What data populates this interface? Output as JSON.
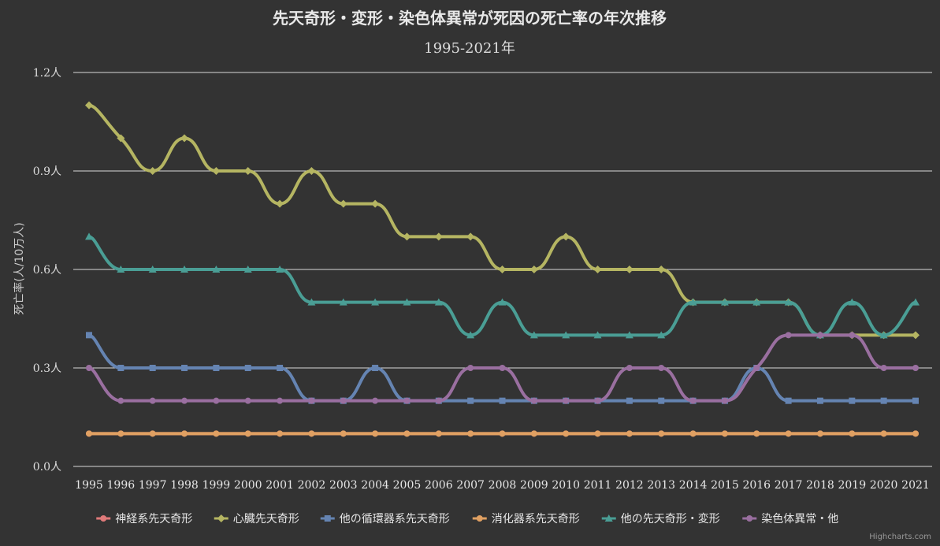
{
  "chart_data": {
    "type": "line",
    "title": "先天奇形・変形・染色体異常が死因の死亡率の年次推移",
    "subtitle": "1995-2021年",
    "ylabel": "死亡率(人/10万人)",
    "y_unit": "人",
    "ylim": [
      0,
      1.2
    ],
    "yticks": [
      0,
      0.3,
      0.6,
      0.9,
      1.2
    ],
    "ytick_labels": [
      "0.0人",
      "0.3人",
      "0.6人",
      "0.9人",
      "1.2人"
    ],
    "grid": true,
    "legend_position": "bottom-center",
    "categories": [
      "1995",
      "1996",
      "1997",
      "1998",
      "1999",
      "2000",
      "2001",
      "2002",
      "2003",
      "2004",
      "2005",
      "2006",
      "2007",
      "2008",
      "2009",
      "2010",
      "2011",
      "2012",
      "2013",
      "2014",
      "2015",
      "2016",
      "2017",
      "2018",
      "2019",
      "2020",
      "2021"
    ],
    "series": [
      {
        "name": "神経系先天奇形",
        "color": "#e07a7a",
        "marker": "circle",
        "values": [
          0.1,
          0.1,
          0.1,
          0.1,
          0.1,
          0.1,
          0.1,
          0.1,
          0.1,
          0.1,
          0.1,
          0.1,
          0.1,
          0.1,
          0.1,
          0.1,
          0.1,
          0.1,
          0.1,
          0.1,
          0.1,
          0.1,
          0.1,
          0.1,
          0.1,
          0.1,
          0.1
        ]
      },
      {
        "name": "心臓先天奇形",
        "color": "#b5b562",
        "marker": "diamond",
        "values": [
          1.1,
          1.0,
          0.9,
          1.0,
          0.9,
          0.9,
          0.8,
          0.9,
          0.8,
          0.8,
          0.7,
          0.7,
          0.7,
          0.6,
          0.6,
          0.7,
          0.6,
          0.6,
          0.6,
          0.5,
          0.5,
          0.5,
          0.5,
          0.4,
          0.4,
          0.4,
          0.4
        ]
      },
      {
        "name": "他の循環器系先天奇形",
        "color": "#6584b2",
        "marker": "square",
        "values": [
          0.4,
          0.3,
          0.3,
          0.3,
          0.3,
          0.3,
          0.3,
          0.2,
          0.2,
          0.3,
          0.2,
          0.2,
          0.2,
          0.2,
          0.2,
          0.2,
          0.2,
          0.2,
          0.2,
          0.2,
          0.2,
          0.3,
          0.2,
          0.2,
          0.2,
          0.2,
          0.2
        ]
      },
      {
        "name": "消化器系先天奇形",
        "color": "#e0a062",
        "marker": "circle",
        "values": [
          0.1,
          0.1,
          0.1,
          0.1,
          0.1,
          0.1,
          0.1,
          0.1,
          0.1,
          0.1,
          0.1,
          0.1,
          0.1,
          0.1,
          0.1,
          0.1,
          0.1,
          0.1,
          0.1,
          0.1,
          0.1,
          0.1,
          0.1,
          0.1,
          0.1,
          0.1,
          0.1
        ]
      },
      {
        "name": "他の先天奇形・変形",
        "color": "#4a9e95",
        "marker": "triangle",
        "values": [
          0.7,
          0.6,
          0.6,
          0.6,
          0.6,
          0.6,
          0.6,
          0.5,
          0.5,
          0.5,
          0.5,
          0.5,
          0.4,
          0.5,
          0.4,
          0.4,
          0.4,
          0.4,
          0.4,
          0.5,
          0.5,
          0.5,
          0.5,
          0.4,
          0.5,
          0.4,
          0.5
        ]
      },
      {
        "name": "染色体異常・他",
        "color": "#9a6fa0",
        "marker": "circle",
        "values": [
          0.3,
          0.2,
          0.2,
          0.2,
          0.2,
          0.2,
          0.2,
          0.2,
          0.2,
          0.2,
          0.2,
          0.2,
          0.3,
          0.3,
          0.2,
          0.2,
          0.2,
          0.3,
          0.3,
          0.2,
          0.2,
          0.3,
          0.4,
          0.4,
          0.4,
          0.3,
          0.3
        ]
      }
    ],
    "credits": "Highcharts.com"
  }
}
